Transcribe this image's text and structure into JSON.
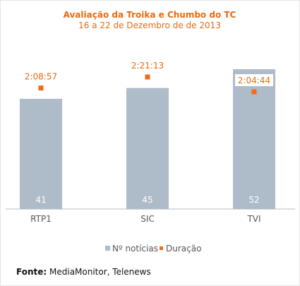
{
  "colors": {
    "bar": "#aebbc9",
    "accent": "#f26a16",
    "title": "#e86a10",
    "axis": "#b8b8b8"
  },
  "chart_data": {
    "type": "bar",
    "title": "Avaliação da Troika e Chumbo do TC",
    "subtitle": "16 a 22 de Dezembro de de 2013",
    "categories": [
      "RTP1",
      "SIC",
      "TVI"
    ],
    "ylim": [
      0,
      52
    ],
    "series": [
      {
        "name": "Nº notícias",
        "kind": "bar",
        "values": [
          41,
          45,
          52
        ]
      },
      {
        "name": "Duração",
        "kind": "point",
        "values": [
          "2:08:57",
          "2:21:13",
          "2:04:44"
        ],
        "seconds": [
          7737,
          8473,
          7484
        ]
      }
    ],
    "legend": "bottom-center",
    "grid": false
  },
  "footer": {
    "label": "Fonte:",
    "text": "MediaMonitor, Telenews"
  }
}
